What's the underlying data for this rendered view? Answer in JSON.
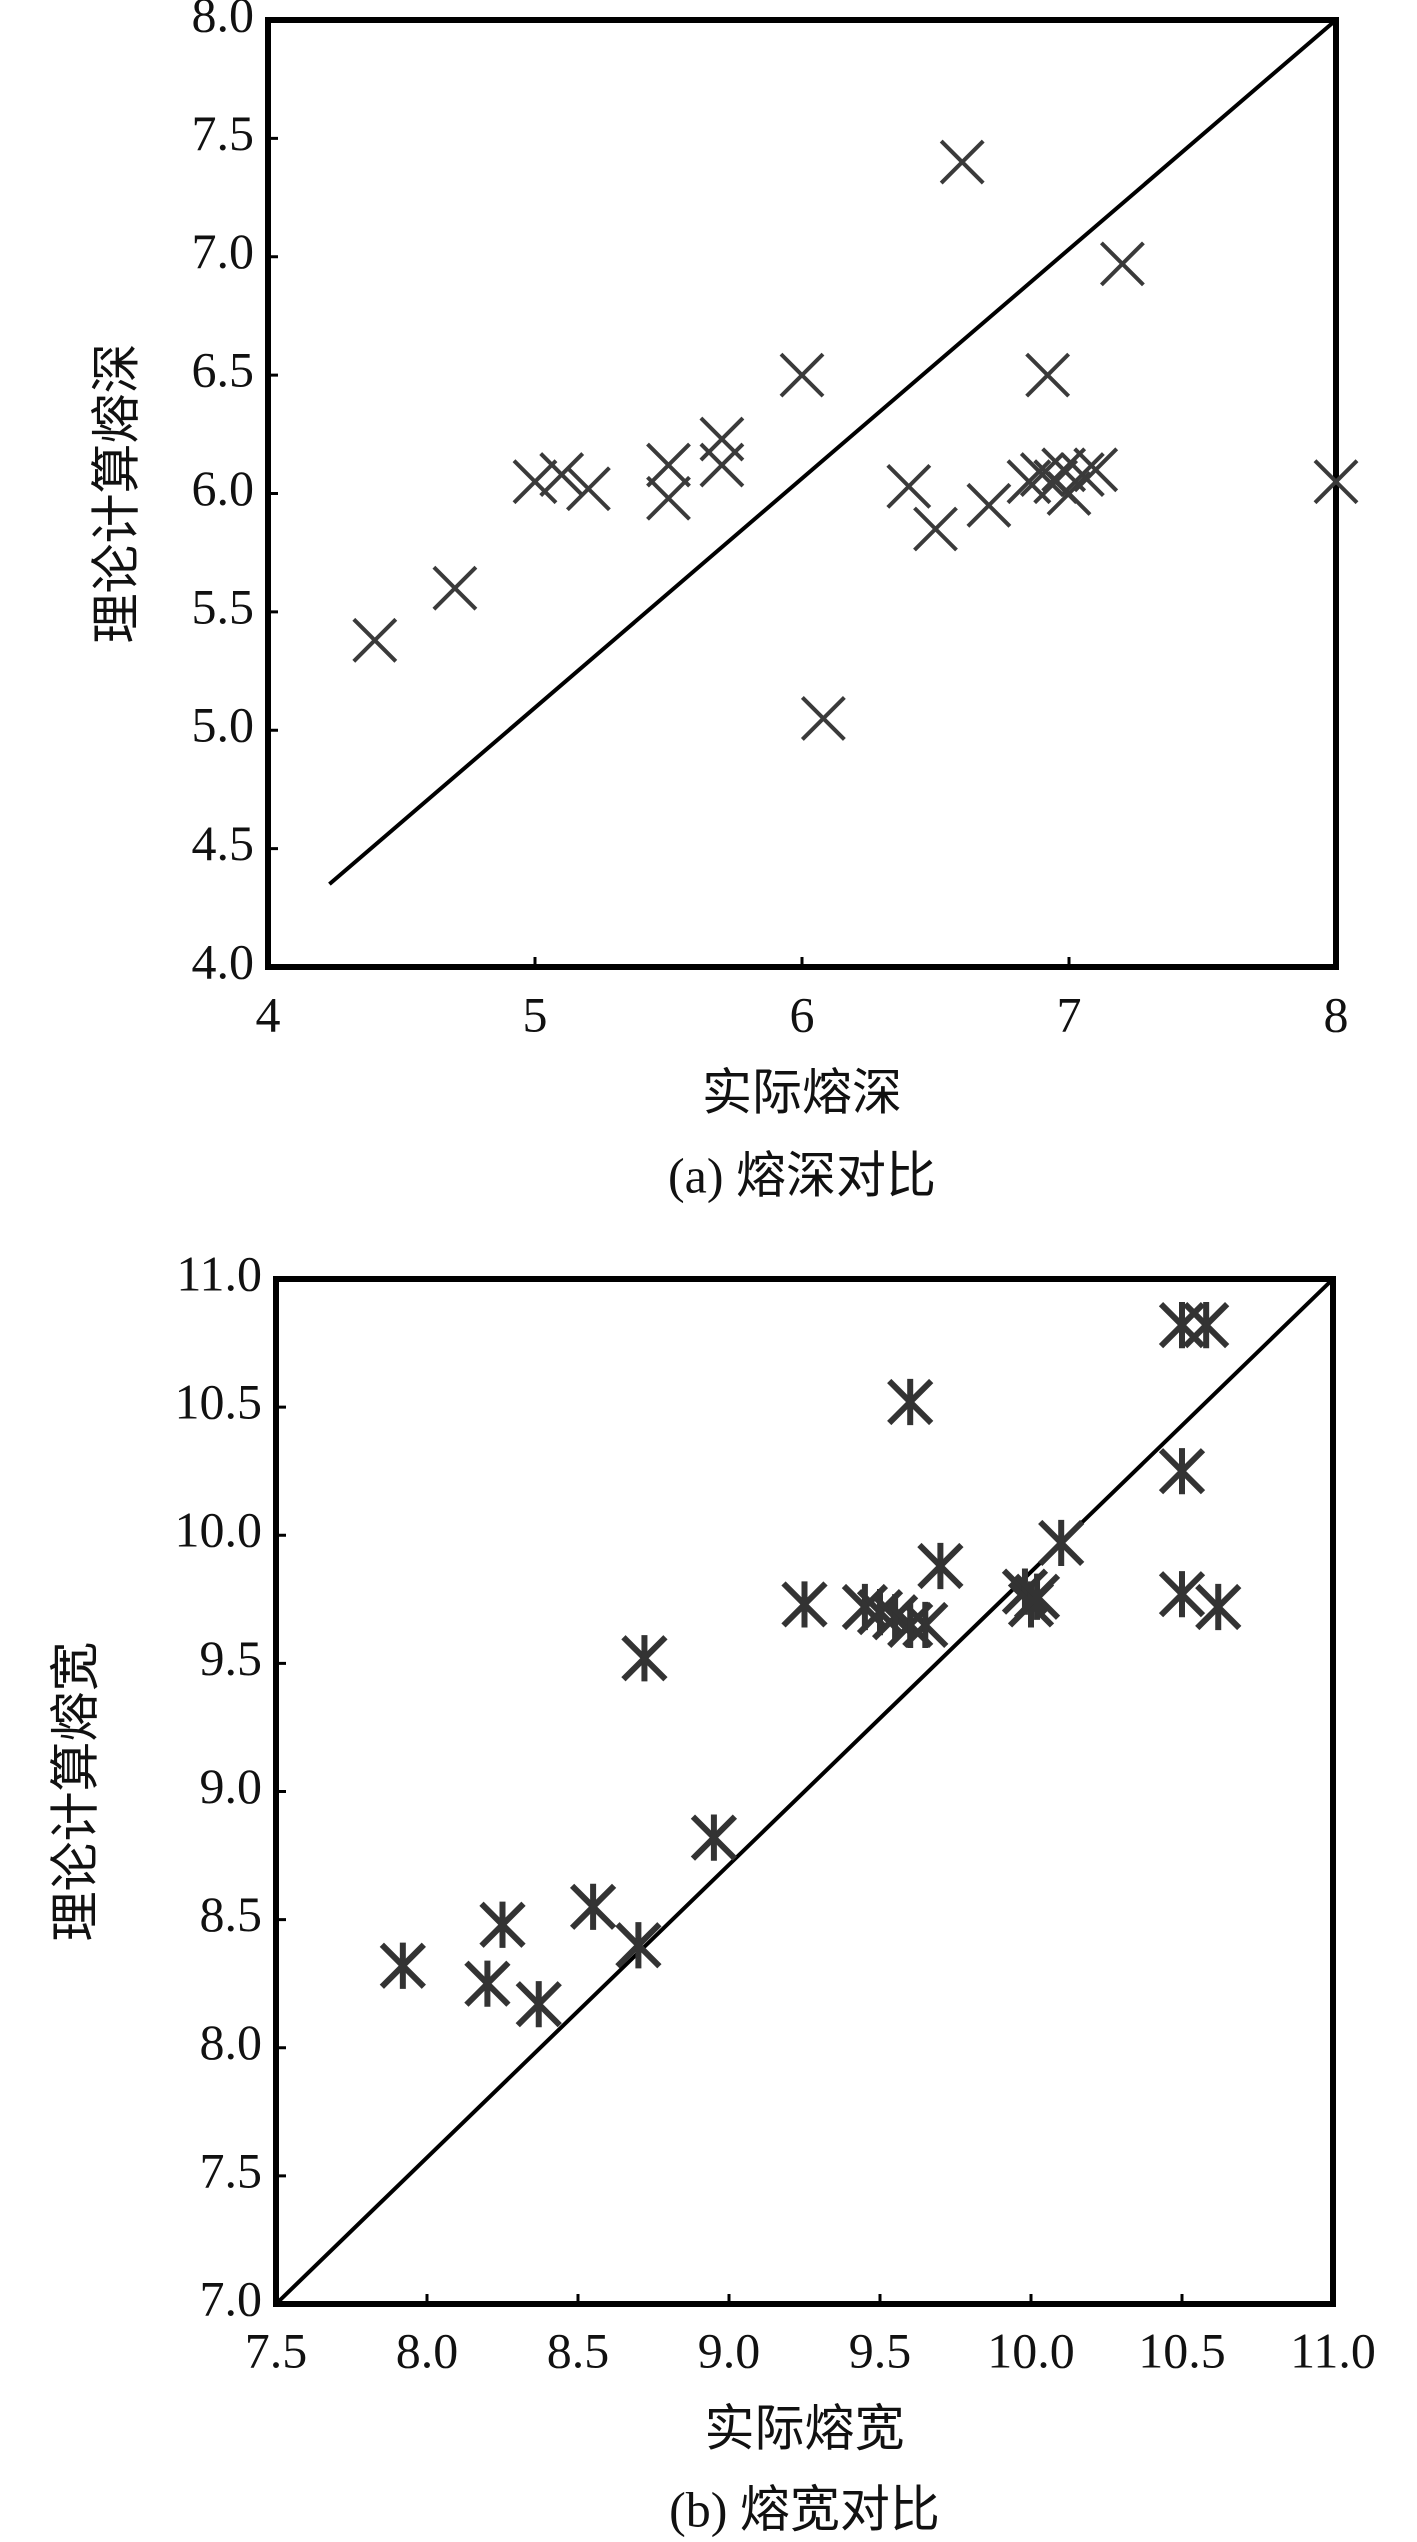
{
  "chart_data": [
    {
      "type": "scatter",
      "marker": "x",
      "color": "#3a3a3a",
      "xlabel": "实际熔深",
      "ylabel": "理论计算熔深",
      "caption": "(a) 熔深对比",
      "x": [
        4.4,
        4.7,
        5.0,
        5.1,
        5.2,
        5.5,
        5.5,
        5.7,
        5.7,
        6.0,
        6.6,
        6.08,
        6.4,
        6.5,
        6.7,
        6.85,
        6.9,
        6.92,
        6.95,
        7.0,
        6.98,
        7.05,
        7.1,
        7.2,
        8.0
      ],
      "values": [
        5.38,
        5.6,
        6.05,
        6.08,
        6.02,
        6.12,
        5.98,
        6.23,
        6.12,
        6.5,
        7.4,
        5.05,
        6.03,
        5.85,
        5.95,
        6.05,
        6.08,
        6.5,
        6.05,
        6.0,
        6.1,
        6.08,
        6.1,
        6.97,
        6.05
      ],
      "ref_line": {
        "x": [
          4.23,
          8.0
        ],
        "y": [
          4.35,
          8.0
        ]
      },
      "xlim": [
        4,
        8
      ],
      "xticks": [
        4,
        5,
        6,
        7,
        8
      ],
      "ylim": [
        4,
        8
      ],
      "yticks": [
        {
          "value": 4,
          "label": "4.0"
        },
        4.5,
        {
          "value": 5,
          "label": "5.0"
        },
        5.5,
        {
          "value": 6,
          "label": "6.0"
        },
        6.5,
        {
          "value": 7,
          "label": "7.0"
        },
        7.5,
        {
          "value": 8,
          "label": "8.0"
        }
      ]
    },
    {
      "type": "scatter",
      "marker": "asterisk",
      "color": "#333333",
      "xlabel": "实际熔宽",
      "ylabel": "理论计算熔宽",
      "caption": "(b) 熔宽对比",
      "x": [
        7.92,
        8.2,
        8.25,
        8.37,
        8.55,
        8.7,
        8.72,
        8.95,
        9.25,
        9.45,
        9.5,
        9.55,
        9.6,
        9.65,
        9.6,
        9.7,
        9.98,
        10.0,
        10.02,
        10.1,
        10.5,
        10.58,
        10.5,
        10.5,
        10.62
      ],
      "values": [
        8.32,
        8.25,
        8.48,
        8.17,
        8.55,
        8.4,
        9.52,
        8.82,
        9.73,
        9.72,
        9.7,
        9.68,
        9.65,
        9.65,
        10.52,
        9.88,
        9.78,
        9.73,
        9.76,
        9.97,
        10.82,
        10.82,
        10.25,
        9.77,
        9.72
      ],
      "ref_line": {
        "x": [
          7.5,
          11.0
        ],
        "y": [
          7.0,
          11.0
        ]
      },
      "xlim": [
        7.5,
        11
      ],
      "xticks": [
        7.5,
        {
          "value": 8,
          "label": "8.0"
        },
        8.5,
        {
          "value": 9,
          "label": "9.0"
        },
        9.5,
        {
          "value": 10,
          "label": "10.0"
        },
        10.5,
        {
          "value": 11,
          "label": "11.0"
        }
      ],
      "ylim": [
        7,
        11
      ],
      "yticks": [
        {
          "value": 7,
          "label": "7.0"
        },
        7.5,
        {
          "value": 8,
          "label": "8.0"
        },
        8.5,
        {
          "value": 9,
          "label": "9.0"
        },
        9.5,
        {
          "value": 10,
          "label": "10.0"
        },
        10.5,
        {
          "value": 11,
          "label": "11.0"
        }
      ]
    }
  ]
}
